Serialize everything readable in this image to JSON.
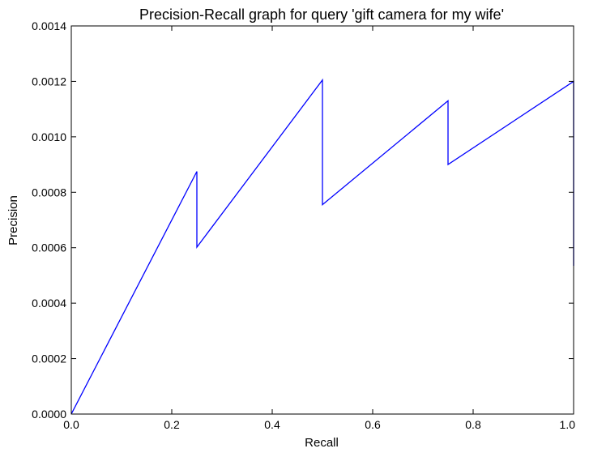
{
  "chart_data": {
    "type": "line",
    "title": "Precision-Recall graph for query 'gift camera for my wife'",
    "xlabel": "Recall",
    "ylabel": "Precision",
    "xlim": [
      0.0,
      1.0
    ],
    "ylim": [
      0.0,
      0.0014
    ],
    "grid": false,
    "line_color": "#0000ff",
    "x_ticks": [
      "0.0",
      "0.2",
      "0.4",
      "0.6",
      "0.8",
      "1.0"
    ],
    "y_ticks": [
      "0.0000",
      "0.0002",
      "0.0004",
      "0.0006",
      "0.0008",
      "0.0010",
      "0.0012",
      "0.0014"
    ],
    "series": [
      {
        "x": [
          0.0,
          0.25,
          0.25,
          0.5,
          0.5,
          0.75,
          0.75,
          1.0,
          1.0
        ],
        "y": [
          0.0,
          0.000875,
          0.000602,
          0.001205,
          0.000755,
          0.00113,
          0.0009,
          0.0012,
          0.000535
        ]
      }
    ]
  }
}
